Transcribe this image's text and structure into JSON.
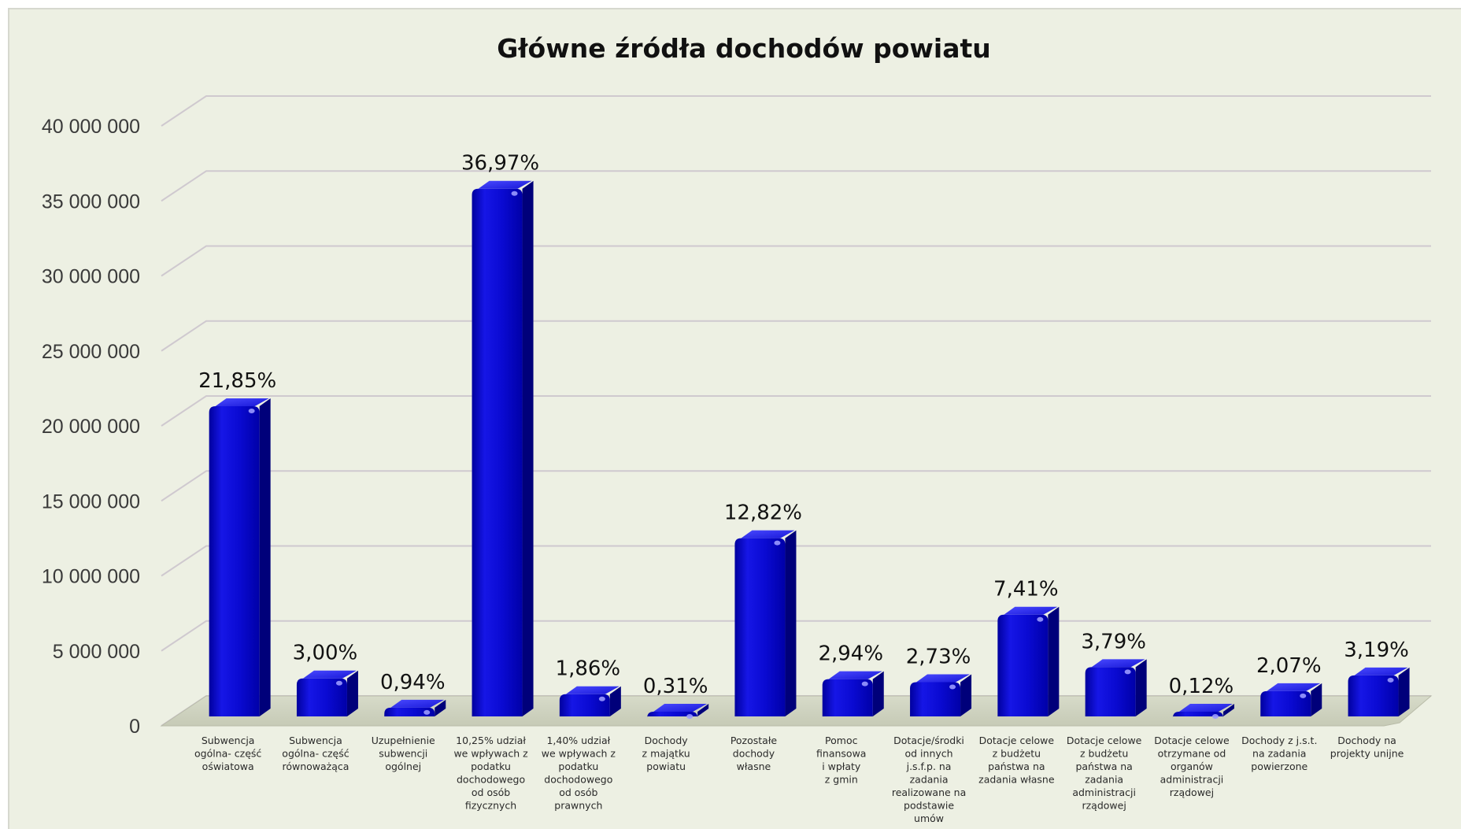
{
  "chart_data": {
    "type": "bar",
    "title": "Główne źródła dochodów powiatu",
    "xlabel": "",
    "ylabel": "",
    "ylim": [
      0,
      40000000
    ],
    "yticks": [
      0,
      5000000,
      10000000,
      15000000,
      20000000,
      25000000,
      30000000,
      35000000,
      40000000
    ],
    "ytick_labels": [
      "0",
      "5 000 000",
      "10 000 000",
      "15 000 000",
      "20 000 000",
      "25 000 000",
      "30 000 000",
      "35 000 000",
      "40 000 000"
    ],
    "grid": true,
    "bar_style": "3d-cylinder",
    "colors": {
      "bar": "#0a0ad2",
      "bar_dark": "#00007a",
      "bar_light": "#3a3aff",
      "background": "#edf0e3",
      "grid": "#cfc9cf"
    },
    "categories": [
      [
        "Subwencja",
        "ogólna- część",
        "oświatowa"
      ],
      [
        "Subwencja",
        "ogólna- część",
        "równoważąca"
      ],
      [
        "Uzupełnienie",
        "subwencji",
        "ogólnej"
      ],
      [
        "10,25% udział",
        "we wpływach z",
        "podatku",
        "dochodowego",
        "od osób",
        "fizycznych"
      ],
      [
        "1,40% udział",
        "we wpływach z",
        "podatku",
        "dochodowego",
        "od osób",
        "prawnych"
      ],
      [
        "Dochody",
        "z majątku",
        "powiatu"
      ],
      [
        "Pozostałe",
        "dochody",
        "własne"
      ],
      [
        "Pomoc",
        "finansowa",
        "i wpłaty",
        "z gmin"
      ],
      [
        "Dotacje/środki",
        "od innych",
        "j.s.f.p. na",
        "zadania",
        "realizowane na",
        "podstawie",
        "umów"
      ],
      [
        "Dotacje celowe",
        "z budżetu",
        "państwa na",
        "zadania własne"
      ],
      [
        "Dotacje celowe",
        "z budżetu",
        "państwa na",
        "zadania",
        "administracji",
        "rządowej"
      ],
      [
        "Dotacje celowe",
        "otrzymane od",
        "organów",
        "administracji",
        "rządowej"
      ],
      [
        "Dochody z j.s.t.",
        "na zadania",
        "powierzone"
      ],
      [
        "Dochody na",
        "projekty unijne"
      ]
    ],
    "values": [
      21000000,
      2850000,
      900000,
      35500000,
      1800000,
      300000,
      12200000,
      2800000,
      2600000,
      7100000,
      3600000,
      120000,
      2000000,
      3050000
    ],
    "data_labels": [
      "21,85%",
      "3,00%",
      "0,94%",
      "36,97%",
      "1,86%",
      "0,31%",
      "12,82%",
      "2,94%",
      "2,73%",
      "7,41%",
      "3,79%",
      "0,12%",
      "2,07%",
      "3,19%"
    ]
  }
}
